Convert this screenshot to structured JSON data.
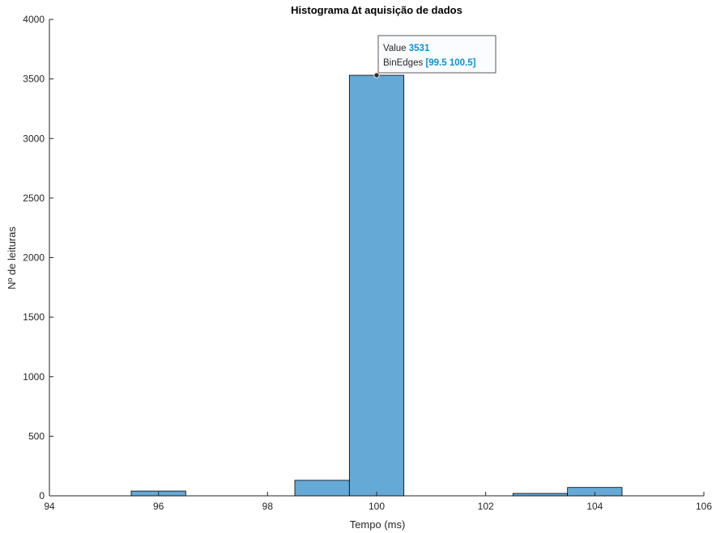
{
  "chart_data": {
    "type": "bar",
    "title": "Histograma ∆t aquisição de dados",
    "xlabel": "Tempo (ms)",
    "ylabel": "Nº de leituras",
    "xlim": [
      94,
      106
    ],
    "ylim": [
      0,
      4000
    ],
    "xticks": [
      94,
      96,
      98,
      100,
      102,
      104,
      106
    ],
    "yticks": [
      0,
      500,
      1000,
      1500,
      2000,
      2500,
      3000,
      3500,
      4000
    ],
    "bin_width": 1,
    "bins": [
      {
        "edges": [
          94.5,
          95.5
        ],
        "value": 0
      },
      {
        "edges": [
          95.5,
          96.5
        ],
        "value": 40
      },
      {
        "edges": [
          96.5,
          97.5
        ],
        "value": 0
      },
      {
        "edges": [
          97.5,
          98.5
        ],
        "value": 0
      },
      {
        "edges": [
          98.5,
          99.5
        ],
        "value": 130
      },
      {
        "edges": [
          99.5,
          100.5
        ],
        "value": 3531
      },
      {
        "edges": [
          100.5,
          101.5
        ],
        "value": 0
      },
      {
        "edges": [
          101.5,
          102.5
        ],
        "value": 0
      },
      {
        "edges": [
          102.5,
          103.5
        ],
        "value": 20
      },
      {
        "edges": [
          103.5,
          104.5
        ],
        "value": 70
      },
      {
        "edges": [
          104.5,
          105.5
        ],
        "value": 0
      }
    ],
    "bar_color": "#65a9d7",
    "edge_color": "#000000",
    "grid": false,
    "datatip": {
      "value_label": "Value",
      "value": "3531",
      "edges_label": "BinEdges",
      "edges": "[99.5 100.5]",
      "bin_index": 5
    }
  }
}
